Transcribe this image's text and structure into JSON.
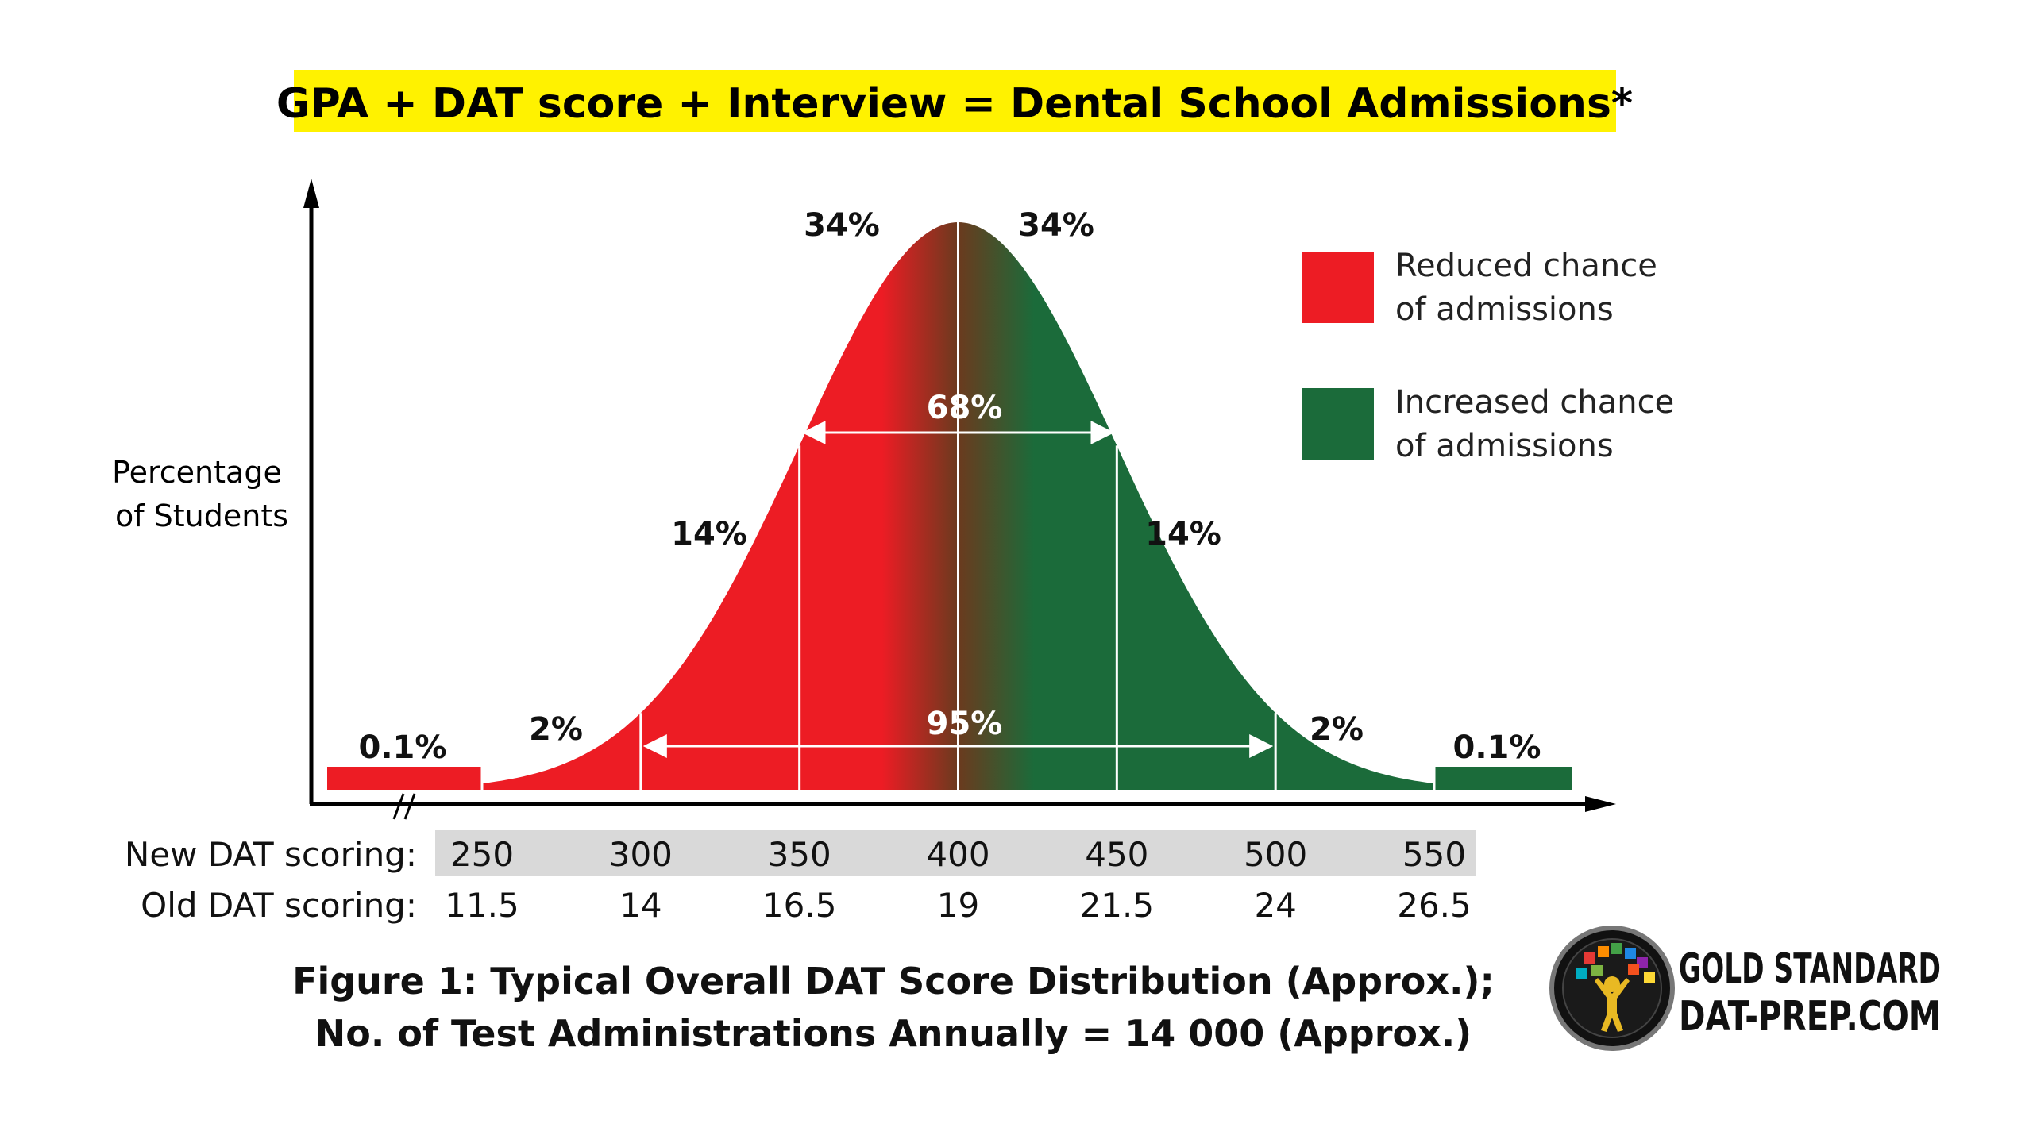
{
  "banner": {
    "text": "GPA + DAT score + Interview = Dental School Admissions*",
    "background": "#FFF200"
  },
  "chart_data": {
    "type": "area",
    "description_label": "Percentage of Students",
    "ylabel": [
      "Percentage",
      "of Students"
    ],
    "x": [
      250,
      300,
      350,
      400,
      450,
      500,
      550
    ],
    "x_old": [
      11.5,
      14,
      16.5,
      19,
      21.5,
      24,
      26.5
    ],
    "row_labels": {
      "new": "New DAT scoring:",
      "old": "Old DAT scoring:"
    },
    "segments": [
      {
        "label": "0.1%",
        "from": "<250",
        "to": 250
      },
      {
        "label": "2%",
        "from": 250,
        "to": 300
      },
      {
        "label": "14%",
        "from": 300,
        "to": 350
      },
      {
        "label": "34%",
        "from": 350,
        "to": 400
      },
      {
        "label": "34%",
        "from": 400,
        "to": 450
      },
      {
        "label": "14%",
        "from": 450,
        "to": 500
      },
      {
        "label": "2%",
        "from": 500,
        "to": 550
      },
      {
        "label": "0.1%",
        "from": 550,
        "to": ">550"
      }
    ],
    "ranges": [
      {
        "label": "68%",
        "from": 350,
        "to": 450
      },
      {
        "label": "95%",
        "from": 300,
        "to": 500
      }
    ],
    "legend": [
      {
        "line1": "Reduced chance",
        "line2": "of admissions",
        "color": "#ED1C24"
      },
      {
        "line1": "Increased chance",
        "line2": "of admissions",
        "color": "#1B6B3A"
      }
    ],
    "legend_position": "top-right",
    "colors": {
      "red": "#ED1C24",
      "green": "#1B6B3A",
      "mid": "#6B3A1E",
      "axis_band": "#D9D9D9"
    }
  },
  "caption": {
    "line1": "Figure 1: Typical Overall DAT Score Distribution (Approx.);",
    "line2": "No. of Test Administrations Annually = 14 000 (Approx.)"
  },
  "logo": {
    "line1": "GOLD STANDARD",
    "line2": "DAT-PREP.COM"
  }
}
